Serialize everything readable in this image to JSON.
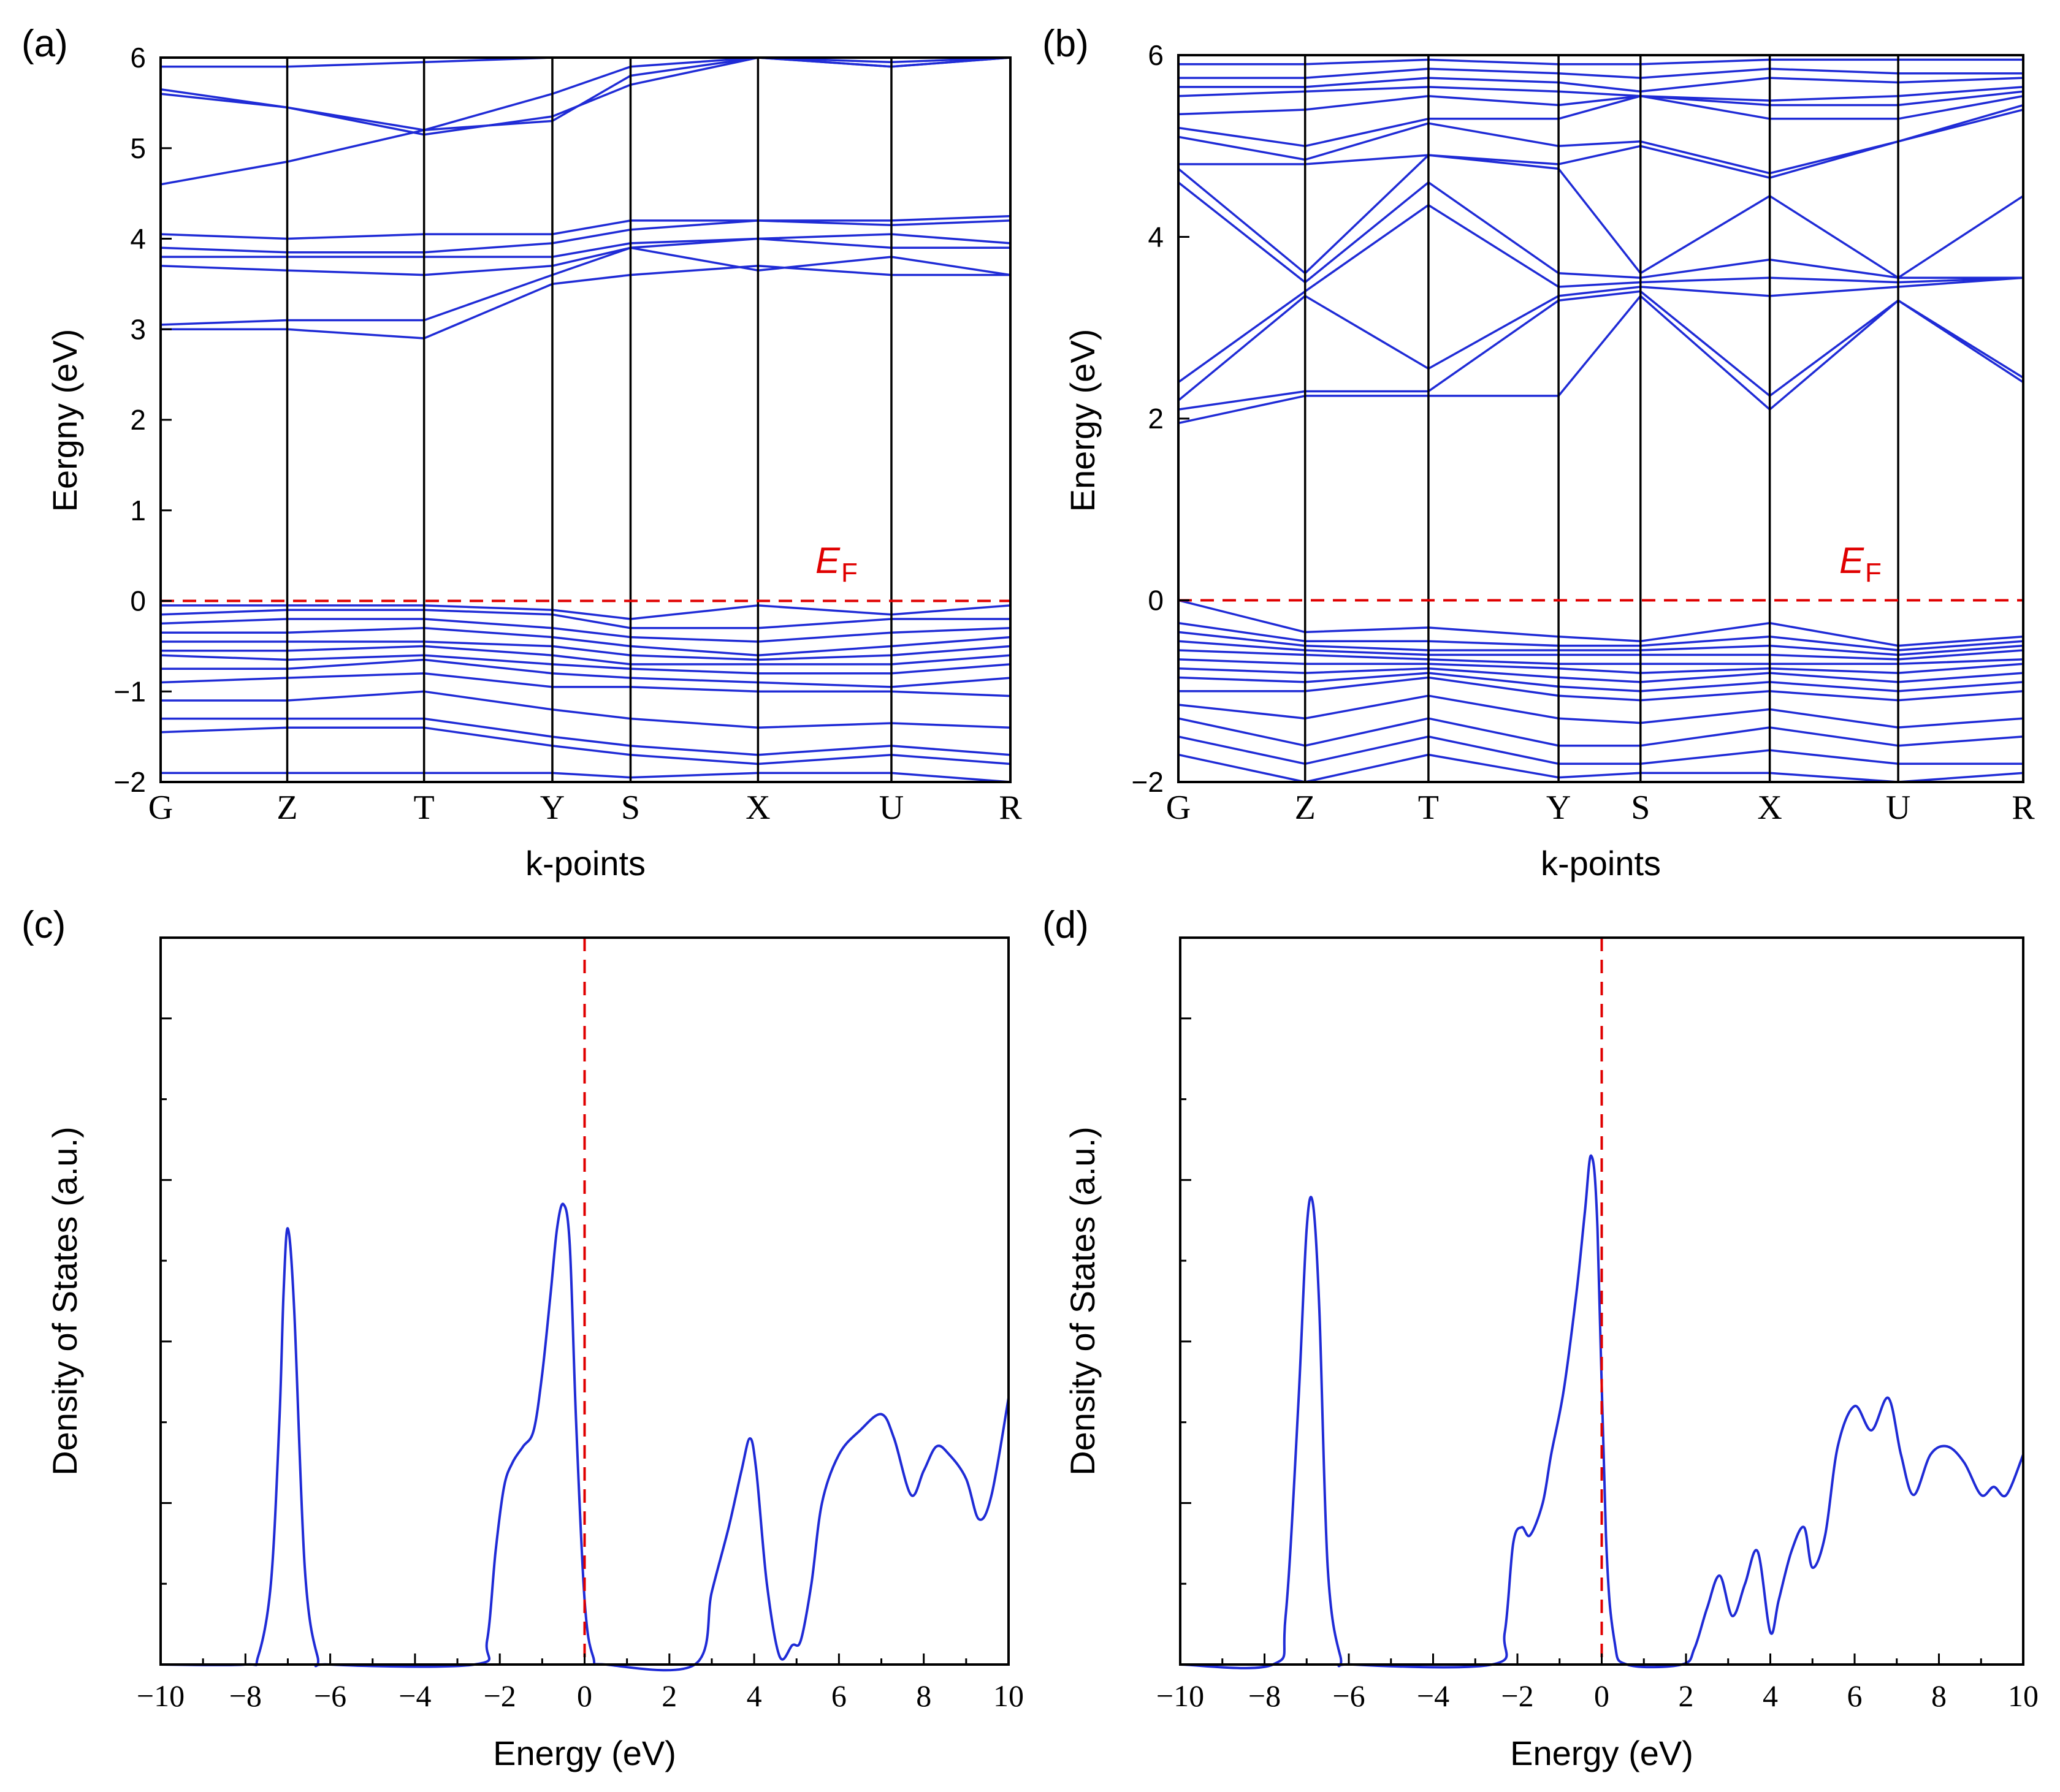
{
  "colors": {
    "band": "#1f2bd6",
    "fermi": "#e00000",
    "axis": "#000000"
  },
  "chart_data": [
    {
      "panel": "(a)",
      "type": "line",
      "subtype": "band-structure",
      "xlabel": "k-points",
      "ylabel": "Eergny (eV)",
      "ylim": [
        -2,
        6
      ],
      "yticks": [
        "6",
        "5",
        "4",
        "3",
        "2",
        "1",
        "0",
        "−1",
        "−2"
      ],
      "kpoints": [
        "G",
        "Z",
        "T",
        "Y",
        "S",
        "X",
        "U",
        "R"
      ],
      "kpos": [
        0,
        0.149,
        0.31,
        0.461,
        0.553,
        0.703,
        0.86,
        1.0
      ],
      "fermi_label": "E",
      "fermi_sub": "F",
      "series": [
        {
          "name": "c1",
          "values": [
            3.0,
            3.0,
            2.9,
            3.5,
            3.6,
            3.7,
            3.6,
            3.6
          ]
        },
        {
          "name": "c2",
          "values": [
            3.05,
            3.1,
            3.1,
            3.6,
            3.9,
            3.65,
            3.8,
            3.6
          ]
        },
        {
          "name": "c3",
          "values": [
            3.7,
            3.65,
            3.6,
            3.7,
            3.9,
            4.0,
            3.9,
            3.9
          ]
        },
        {
          "name": "c4",
          "values": [
            3.8,
            3.8,
            3.8,
            3.8,
            3.95,
            4.0,
            4.05,
            3.95
          ]
        },
        {
          "name": "c5",
          "values": [
            3.9,
            3.85,
            3.85,
            3.95,
            4.1,
            4.2,
            4.15,
            4.2
          ]
        },
        {
          "name": "c6",
          "values": [
            4.05,
            4.0,
            4.05,
            4.05,
            4.2,
            4.2,
            4.2,
            4.25
          ]
        },
        {
          "name": "c7",
          "values": [
            4.6,
            4.85,
            5.2,
            5.6,
            5.9,
            6.0,
            5.9,
            6.0
          ]
        },
        {
          "name": "c8",
          "values": [
            5.6,
            5.45,
            5.15,
            5.35,
            5.7,
            6.0,
            5.95,
            6.0
          ]
        },
        {
          "name": "c9",
          "values": [
            5.65,
            5.45,
            5.2,
            5.3,
            5.8,
            6.0,
            5.9,
            6.0
          ]
        },
        {
          "name": "c10",
          "values": [
            5.9,
            5.9,
            5.95,
            6.0,
            6.0,
            6.0,
            6.0,
            6.0
          ]
        },
        {
          "name": "v1",
          "values": [
            -0.05,
            -0.05,
            -0.05,
            -0.1,
            -0.2,
            -0.05,
            -0.15,
            -0.05
          ]
        },
        {
          "name": "v2",
          "values": [
            -0.15,
            -0.1,
            -0.1,
            -0.15,
            -0.3,
            -0.3,
            -0.2,
            -0.2
          ]
        },
        {
          "name": "v3",
          "values": [
            -0.25,
            -0.2,
            -0.2,
            -0.3,
            -0.4,
            -0.45,
            -0.35,
            -0.3
          ]
        },
        {
          "name": "v4",
          "values": [
            -0.35,
            -0.35,
            -0.3,
            -0.4,
            -0.5,
            -0.6,
            -0.5,
            -0.4
          ]
        },
        {
          "name": "v5",
          "values": [
            -0.45,
            -0.45,
            -0.45,
            -0.5,
            -0.6,
            -0.65,
            -0.6,
            -0.5
          ]
        },
        {
          "name": "v6",
          "values": [
            -0.55,
            -0.55,
            -0.5,
            -0.6,
            -0.7,
            -0.7,
            -0.7,
            -0.6
          ]
        },
        {
          "name": "v7",
          "values": [
            -0.6,
            -0.65,
            -0.6,
            -0.7,
            -0.75,
            -0.8,
            -0.8,
            -0.7
          ]
        },
        {
          "name": "v8",
          "values": [
            -0.75,
            -0.75,
            -0.65,
            -0.8,
            -0.85,
            -0.9,
            -0.95,
            -0.85
          ]
        },
        {
          "name": "v9",
          "values": [
            -0.9,
            -0.85,
            -0.8,
            -0.95,
            -0.95,
            -1.0,
            -1.0,
            -1.05
          ]
        },
        {
          "name": "v10",
          "values": [
            -1.1,
            -1.1,
            -1.0,
            -1.2,
            -1.3,
            -1.4,
            -1.35,
            -1.4
          ]
        },
        {
          "name": "v11",
          "values": [
            -1.3,
            -1.3,
            -1.3,
            -1.5,
            -1.6,
            -1.7,
            -1.6,
            -1.7
          ]
        },
        {
          "name": "v12",
          "values": [
            -1.45,
            -1.4,
            -1.4,
            -1.6,
            -1.7,
            -1.8,
            -1.7,
            -1.8
          ]
        },
        {
          "name": "v13",
          "values": [
            -1.9,
            -1.9,
            -1.9,
            -1.9,
            -1.95,
            -1.9,
            -1.9,
            -2.0
          ]
        }
      ]
    },
    {
      "panel": "(b)",
      "type": "line",
      "subtype": "band-structure",
      "xlabel": "k-points",
      "ylabel": "Energy (eV)",
      "ylim": [
        -2,
        6
      ],
      "yticks": [
        "6",
        "4",
        "2",
        "0",
        "−2"
      ],
      "kpoints": [
        "G",
        "Z",
        "T",
        "Y",
        "S",
        "X",
        "U",
        "R"
      ],
      "kpos": [
        0,
        0.15,
        0.296,
        0.45,
        0.547,
        0.7,
        0.852,
        1.0
      ],
      "fermi_label": "E",
      "fermi_sub": "F",
      "series": [
        {
          "name": "c1",
          "values": [
            1.95,
            2.25,
            2.25,
            2.25,
            3.35,
            2.1,
            3.3,
            2.4
          ]
        },
        {
          "name": "c2",
          "values": [
            2.1,
            2.3,
            2.3,
            3.3,
            3.4,
            2.25,
            3.3,
            2.45
          ]
        },
        {
          "name": "c3",
          "values": [
            2.2,
            3.35,
            2.55,
            3.35,
            3.45,
            3.35,
            3.45,
            3.55
          ]
        },
        {
          "name": "c4",
          "values": [
            2.4,
            3.4,
            4.35,
            3.45,
            3.5,
            3.55,
            3.5,
            3.55
          ]
        },
        {
          "name": "c5",
          "values": [
            4.6,
            3.5,
            4.6,
            3.6,
            3.55,
            3.75,
            3.55,
            3.55
          ]
        },
        {
          "name": "c6",
          "values": [
            4.75,
            3.6,
            4.9,
            4.75,
            3.6,
            4.45,
            3.55,
            4.45
          ]
        },
        {
          "name": "c7",
          "values": [
            4.8,
            4.8,
            4.9,
            4.8,
            5.0,
            4.65,
            5.05,
            5.4
          ]
        },
        {
          "name": "c8",
          "values": [
            5.1,
            4.85,
            5.25,
            5.0,
            5.05,
            4.7,
            5.05,
            5.45
          ]
        },
        {
          "name": "c9",
          "values": [
            5.2,
            5.0,
            5.3,
            5.3,
            5.55,
            5.3,
            5.3,
            5.55
          ]
        },
        {
          "name": "c10",
          "values": [
            5.35,
            5.4,
            5.55,
            5.45,
            5.55,
            5.45,
            5.45,
            5.6
          ]
        },
        {
          "name": "c11",
          "values": [
            5.55,
            5.6,
            5.65,
            5.6,
            5.55,
            5.5,
            5.55,
            5.65
          ]
        },
        {
          "name": "c12",
          "values": [
            5.65,
            5.65,
            5.75,
            5.7,
            5.6,
            5.75,
            5.7,
            5.75
          ]
        },
        {
          "name": "c13",
          "values": [
            5.75,
            5.75,
            5.85,
            5.8,
            5.75,
            5.85,
            5.8,
            5.8
          ]
        },
        {
          "name": "c14",
          "values": [
            5.9,
            5.9,
            5.95,
            5.9,
            5.9,
            5.95,
            5.95,
            5.95
          ]
        },
        {
          "name": "v1",
          "values": [
            0.0,
            -0.35,
            -0.3,
            -0.4,
            -0.45,
            -0.25,
            -0.5,
            -0.4
          ]
        },
        {
          "name": "v2",
          "values": [
            -0.25,
            -0.45,
            -0.45,
            -0.5,
            -0.5,
            -0.4,
            -0.55,
            -0.45
          ]
        },
        {
          "name": "v3",
          "values": [
            -0.35,
            -0.5,
            -0.55,
            -0.55,
            -0.55,
            -0.5,
            -0.6,
            -0.5
          ]
        },
        {
          "name": "v4",
          "values": [
            -0.45,
            -0.55,
            -0.6,
            -0.6,
            -0.6,
            -0.6,
            -0.65,
            -0.55
          ]
        },
        {
          "name": "v5",
          "values": [
            -0.55,
            -0.6,
            -0.65,
            -0.7,
            -0.7,
            -0.7,
            -0.7,
            -0.65
          ]
        },
        {
          "name": "v6",
          "values": [
            -0.65,
            -0.7,
            -0.7,
            -0.75,
            -0.8,
            -0.75,
            -0.8,
            -0.7
          ]
        },
        {
          "name": "v7",
          "values": [
            -0.75,
            -0.8,
            -0.75,
            -0.85,
            -0.9,
            -0.8,
            -0.9,
            -0.8
          ]
        },
        {
          "name": "v8",
          "values": [
            -0.85,
            -0.9,
            -0.8,
            -0.95,
            -1.0,
            -0.9,
            -1.0,
            -0.9
          ]
        },
        {
          "name": "v9",
          "values": [
            -1.0,
            -1.0,
            -0.85,
            -1.05,
            -1.1,
            -1.0,
            -1.1,
            -1.0
          ]
        },
        {
          "name": "v10",
          "values": [
            -1.15,
            -1.3,
            -1.05,
            -1.3,
            -1.35,
            -1.2,
            -1.4,
            -1.3
          ]
        },
        {
          "name": "v11",
          "values": [
            -1.3,
            -1.6,
            -1.3,
            -1.6,
            -1.6,
            -1.4,
            -1.6,
            -1.5
          ]
        },
        {
          "name": "v12",
          "values": [
            -1.5,
            -1.8,
            -1.5,
            -1.8,
            -1.8,
            -1.65,
            -1.8,
            -1.8
          ]
        },
        {
          "name": "v13",
          "values": [
            -1.7,
            -2.0,
            -1.7,
            -1.95,
            -1.9,
            -1.9,
            -2.0,
            -1.9
          ]
        }
      ]
    },
    {
      "panel": "(c)",
      "type": "line",
      "subtype": "density-of-states",
      "xlabel": "Energy (eV)",
      "ylabel": "Density of States (a.u.)",
      "xlim": [
        -10,
        10
      ],
      "ylim": [
        0,
        4.5
      ],
      "xticks": [
        "−10",
        "−8",
        "−6",
        "−4",
        "−2",
        "0",
        "2",
        "4",
        "6",
        "8",
        "10"
      ],
      "fermi_x": 0,
      "x": [
        -10,
        -8.0,
        -7.7,
        -7.4,
        -7.2,
        -7.1,
        -7.0,
        -6.85,
        -6.6,
        -6.3,
        -6.0,
        -2.6,
        -2.3,
        -2.1,
        -1.9,
        -1.7,
        -1.45,
        -1.2,
        -1.0,
        -0.8,
        -0.65,
        -0.5,
        -0.35,
        -0.2,
        0.0,
        0.2,
        0.5,
        2.6,
        3.0,
        3.4,
        3.7,
        3.9,
        4.05,
        4.3,
        4.6,
        4.9,
        5.1,
        5.35,
        5.6,
        6.0,
        6.5,
        7.0,
        7.3,
        7.7,
        8.0,
        8.3,
        8.6,
        9.0,
        9.3,
        9.6,
        10.0
      ],
      "y": [
        0,
        0,
        0.05,
        0.5,
        1.5,
        2.3,
        2.7,
        2.2,
        0.6,
        0.05,
        0,
        0,
        0.15,
        0.7,
        1.1,
        1.25,
        1.35,
        1.45,
        1.8,
        2.3,
        2.7,
        2.85,
        2.6,
        1.5,
        0.4,
        0.05,
        0,
        0,
        0.45,
        0.85,
        1.2,
        1.4,
        1.2,
        0.5,
        0.05,
        0.12,
        0.15,
        0.5,
        1.0,
        1.3,
        1.45,
        1.55,
        1.4,
        1.05,
        1.2,
        1.35,
        1.3,
        1.15,
        0.9,
        1.05,
        1.65
      ]
    },
    {
      "panel": "(d)",
      "type": "line",
      "subtype": "density-of-states",
      "xlabel": "Energy (eV)",
      "ylabel": "Density of States (a.u.)",
      "xlim": [
        -10,
        10
      ],
      "ylim": [
        0,
        4.5
      ],
      "xticks": [
        "−10",
        "−8",
        "−6",
        "−4",
        "−2",
        "0",
        "2",
        "4",
        "6",
        "8",
        "10"
      ],
      "fermi_x": 0,
      "x": [
        -10,
        -7.8,
        -7.5,
        -7.2,
        -7.0,
        -6.85,
        -6.7,
        -6.5,
        -6.2,
        -5.9,
        -2.6,
        -2.3,
        -2.1,
        -1.9,
        -1.7,
        -1.4,
        -1.2,
        -0.9,
        -0.6,
        -0.4,
        -0.25,
        -0.1,
        0.1,
        0.3,
        0.6,
        1.9,
        2.2,
        2.5,
        2.8,
        3.1,
        3.4,
        3.7,
        4.0,
        4.2,
        4.5,
        4.8,
        5.0,
        5.3,
        5.6,
        6.0,
        6.4,
        6.8,
        7.1,
        7.4,
        7.8,
        8.2,
        8.6,
        9.0,
        9.3,
        9.6,
        10.0
      ],
      "y": [
        0,
        0,
        0.3,
        1.6,
        2.7,
        2.85,
        2.2,
        0.6,
        0.05,
        0,
        0,
        0.2,
        0.75,
        0.85,
        0.8,
        1.0,
        1.3,
        1.7,
        2.3,
        2.8,
        3.15,
        2.7,
        0.8,
        0.15,
        0,
        0,
        0.1,
        0.35,
        0.55,
        0.3,
        0.5,
        0.7,
        0.2,
        0.4,
        0.7,
        0.85,
        0.6,
        0.8,
        1.35,
        1.6,
        1.45,
        1.65,
        1.3,
        1.05,
        1.3,
        1.35,
        1.25,
        1.05,
        1.1,
        1.05,
        1.3
      ]
    }
  ],
  "panel_labels": [
    "(a)",
    "(b)",
    "(c)",
    "(d)"
  ]
}
